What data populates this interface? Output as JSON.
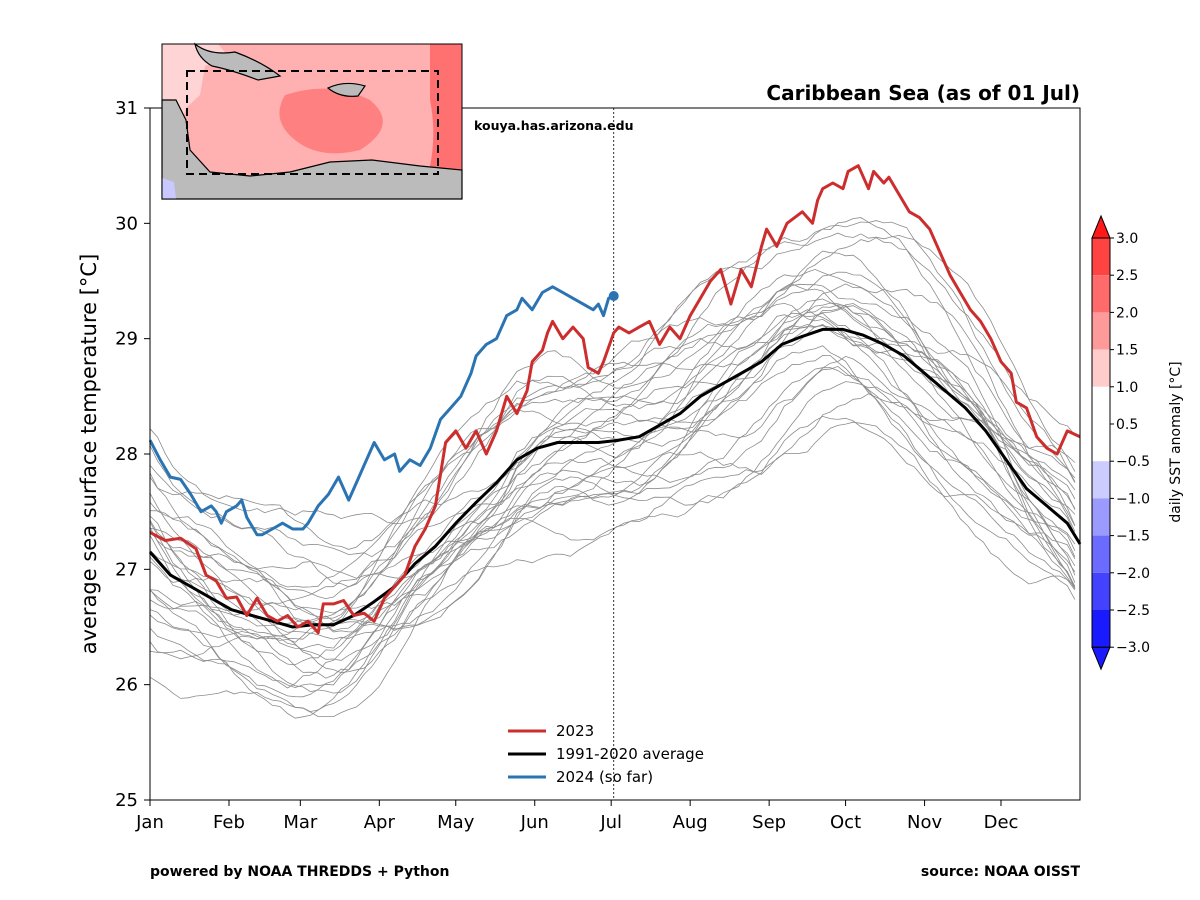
{
  "chart_data": {
    "type": "line",
    "title": "Caribbean Sea (as of 01 Jul)",
    "ylabel": "average sea surface temperature [°C]",
    "xlabel": "",
    "xlim": [
      0,
      365
    ],
    "ylim": [
      25,
      31
    ],
    "x_ticks": [
      {
        "day": 0,
        "label": "Jan"
      },
      {
        "day": 31,
        "label": "Feb"
      },
      {
        "day": 59,
        "label": "Mar"
      },
      {
        "day": 90,
        "label": "Apr"
      },
      {
        "day": 120,
        "label": "May"
      },
      {
        "day": 151,
        "label": "Jun"
      },
      {
        "day": 181,
        "label": "Jul"
      },
      {
        "day": 212,
        "label": "Aug"
      },
      {
        "day": 243,
        "label": "Sep"
      },
      {
        "day": 273,
        "label": "Oct"
      },
      {
        "day": 304,
        "label": "Nov"
      },
      {
        "day": 334,
        "label": "Dec"
      }
    ],
    "y_ticks": [
      25,
      26,
      27,
      28,
      29,
      30,
      31
    ],
    "current_day_marker": 182,
    "series": [
      {
        "name": "2023",
        "color": "#cc2e2e",
        "points": [
          [
            0,
            27.32
          ],
          [
            6,
            27.25
          ],
          [
            12,
            27.27
          ],
          [
            18,
            27.18
          ],
          [
            22,
            26.95
          ],
          [
            26,
            26.9
          ],
          [
            30,
            26.75
          ],
          [
            34,
            26.76
          ],
          [
            38,
            26.6
          ],
          [
            42,
            26.75
          ],
          [
            46,
            26.6
          ],
          [
            50,
            26.55
          ],
          [
            54,
            26.6
          ],
          [
            58,
            26.5
          ],
          [
            62,
            26.55
          ],
          [
            66,
            26.45
          ],
          [
            68,
            26.7
          ],
          [
            72,
            26.7
          ],
          [
            76,
            26.73
          ],
          [
            80,
            26.6
          ],
          [
            84,
            26.62
          ],
          [
            88,
            26.55
          ],
          [
            92,
            26.75
          ],
          [
            96,
            26.85
          ],
          [
            100,
            26.95
          ],
          [
            104,
            27.2
          ],
          [
            108,
            27.35
          ],
          [
            112,
            27.55
          ],
          [
            116,
            28.1
          ],
          [
            120,
            28.2
          ],
          [
            124,
            28.05
          ],
          [
            128,
            28.2
          ],
          [
            132,
            28.0
          ],
          [
            136,
            28.2
          ],
          [
            140,
            28.5
          ],
          [
            144,
            28.35
          ],
          [
            148,
            28.55
          ],
          [
            150,
            28.8
          ],
          [
            154,
            28.9
          ],
          [
            156,
            29.05
          ],
          [
            158,
            29.15
          ],
          [
            162,
            29.0
          ],
          [
            166,
            29.1
          ],
          [
            170,
            29.0
          ],
          [
            172,
            28.75
          ],
          [
            176,
            28.7
          ],
          [
            178,
            28.8
          ],
          [
            182,
            29.05
          ],
          [
            184,
            29.1
          ],
          [
            188,
            29.05
          ],
          [
            192,
            29.1
          ],
          [
            196,
            29.15
          ],
          [
            200,
            28.95
          ],
          [
            204,
            29.1
          ],
          [
            208,
            29.0
          ],
          [
            212,
            29.2
          ],
          [
            216,
            29.35
          ],
          [
            220,
            29.5
          ],
          [
            224,
            29.6
          ],
          [
            228,
            29.3
          ],
          [
            232,
            29.6
          ],
          [
            236,
            29.45
          ],
          [
            240,
            29.8
          ],
          [
            242,
            29.95
          ],
          [
            246,
            29.8
          ],
          [
            250,
            30.0
          ],
          [
            256,
            30.1
          ],
          [
            260,
            30.0
          ],
          [
            262,
            30.2
          ],
          [
            264,
            30.3
          ],
          [
            268,
            30.35
          ],
          [
            272,
            30.3
          ],
          [
            274,
            30.45
          ],
          [
            278,
            30.5
          ],
          [
            282,
            30.3
          ],
          [
            284,
            30.45
          ],
          [
            288,
            30.35
          ],
          [
            290,
            30.4
          ],
          [
            294,
            30.25
          ],
          [
            298,
            30.1
          ],
          [
            302,
            30.05
          ],
          [
            306,
            29.95
          ],
          [
            310,
            29.75
          ],
          [
            314,
            29.55
          ],
          [
            318,
            29.4
          ],
          [
            322,
            29.25
          ],
          [
            326,
            29.15
          ],
          [
            330,
            29.0
          ],
          [
            334,
            28.8
          ],
          [
            338,
            28.7
          ],
          [
            340,
            28.45
          ],
          [
            344,
            28.4
          ],
          [
            348,
            28.15
          ],
          [
            352,
            28.05
          ],
          [
            356,
            28.0
          ],
          [
            360,
            28.2
          ],
          [
            365,
            28.15
          ]
        ]
      },
      {
        "name": "1991-2020 average",
        "color": "#000000",
        "points": [
          [
            0,
            27.15
          ],
          [
            8,
            26.95
          ],
          [
            16,
            26.85
          ],
          [
            24,
            26.75
          ],
          [
            32,
            26.65
          ],
          [
            40,
            26.6
          ],
          [
            48,
            26.55
          ],
          [
            56,
            26.5
          ],
          [
            64,
            26.52
          ],
          [
            72,
            26.52
          ],
          [
            80,
            26.6
          ],
          [
            88,
            26.72
          ],
          [
            96,
            26.85
          ],
          [
            104,
            27.05
          ],
          [
            112,
            27.2
          ],
          [
            120,
            27.4
          ],
          [
            128,
            27.58
          ],
          [
            136,
            27.75
          ],
          [
            144,
            27.95
          ],
          [
            152,
            28.05
          ],
          [
            160,
            28.1
          ],
          [
            168,
            28.1
          ],
          [
            176,
            28.1
          ],
          [
            184,
            28.12
          ],
          [
            192,
            28.15
          ],
          [
            200,
            28.25
          ],
          [
            208,
            28.35
          ],
          [
            216,
            28.5
          ],
          [
            224,
            28.6
          ],
          [
            232,
            28.7
          ],
          [
            240,
            28.8
          ],
          [
            248,
            28.95
          ],
          [
            256,
            29.02
          ],
          [
            264,
            29.08
          ],
          [
            272,
            29.08
          ],
          [
            280,
            29.03
          ],
          [
            288,
            28.95
          ],
          [
            296,
            28.85
          ],
          [
            304,
            28.7
          ],
          [
            312,
            28.55
          ],
          [
            320,
            28.4
          ],
          [
            328,
            28.2
          ],
          [
            336,
            27.95
          ],
          [
            344,
            27.7
          ],
          [
            352,
            27.55
          ],
          [
            360,
            27.4
          ],
          [
            365,
            27.22
          ]
        ]
      },
      {
        "name": "2024 (so far)",
        "color": "#2a74b3",
        "points": [
          [
            0,
            28.12
          ],
          [
            4,
            27.95
          ],
          [
            8,
            27.8
          ],
          [
            12,
            27.78
          ],
          [
            16,
            27.65
          ],
          [
            20,
            27.5
          ],
          [
            24,
            27.55
          ],
          [
            26,
            27.5
          ],
          [
            28,
            27.4
          ],
          [
            30,
            27.5
          ],
          [
            34,
            27.55
          ],
          [
            36,
            27.6
          ],
          [
            38,
            27.45
          ],
          [
            42,
            27.3
          ],
          [
            44,
            27.3
          ],
          [
            48,
            27.35
          ],
          [
            52,
            27.4
          ],
          [
            56,
            27.35
          ],
          [
            60,
            27.35
          ],
          [
            62,
            27.4
          ],
          [
            66,
            27.55
          ],
          [
            70,
            27.65
          ],
          [
            74,
            27.8
          ],
          [
            78,
            27.6
          ],
          [
            82,
            27.8
          ],
          [
            84,
            27.9
          ],
          [
            86,
            28.0
          ],
          [
            88,
            28.1
          ],
          [
            92,
            27.95
          ],
          [
            96,
            28.0
          ],
          [
            98,
            27.85
          ],
          [
            102,
            27.95
          ],
          [
            106,
            27.9
          ],
          [
            110,
            28.05
          ],
          [
            114,
            28.3
          ],
          [
            118,
            28.4
          ],
          [
            122,
            28.5
          ],
          [
            126,
            28.7
          ],
          [
            128,
            28.85
          ],
          [
            132,
            28.95
          ],
          [
            136,
            29.0
          ],
          [
            140,
            29.2
          ],
          [
            144,
            29.25
          ],
          [
            146,
            29.35
          ],
          [
            150,
            29.25
          ],
          [
            154,
            29.4
          ],
          [
            158,
            29.45
          ],
          [
            162,
            29.4
          ],
          [
            166,
            29.35
          ],
          [
            170,
            29.3
          ],
          [
            174,
            29.25
          ],
          [
            176,
            29.3
          ],
          [
            178,
            29.2
          ],
          [
            180,
            29.35
          ],
          [
            182,
            29.37
          ]
        ]
      }
    ],
    "background_years": "1991-2020 individual years (thin gray)",
    "legend": {
      "position": "bottom-center",
      "entries": [
        {
          "label": "2023",
          "color": "#cc2e2e"
        },
        {
          "label": "1991-2020 average",
          "color": "#000000"
        },
        {
          "label": "2024 (so far)",
          "color": "#2a74b3"
        }
      ]
    },
    "colorbar": {
      "label": "daily SST anomaly [°C]",
      "ticks": [
        "3.0",
        "2.5",
        "2.0",
        "1.5",
        "1.0",
        "0.5",
        "−0.5",
        "−1.0",
        "−1.5",
        "−2.0",
        "−2.5",
        "−3.0"
      ],
      "colors": [
        "#ff1a1a",
        "#ff4242",
        "#ff6b6b",
        "#ff9a9a",
        "#ffcccc",
        "#ffffff",
        "#ffffff",
        "#ccccff",
        "#9a9aff",
        "#6b6bff",
        "#4242ff",
        "#1a1aff"
      ]
    }
  },
  "annotations": {
    "website": "kouya.has.arizona.edu",
    "footer_left": "powered by NOAA THREDDS + Python",
    "footer_right": "source: NOAA OISST"
  },
  "inset_map": {
    "region": "Caribbean Sea"
  }
}
